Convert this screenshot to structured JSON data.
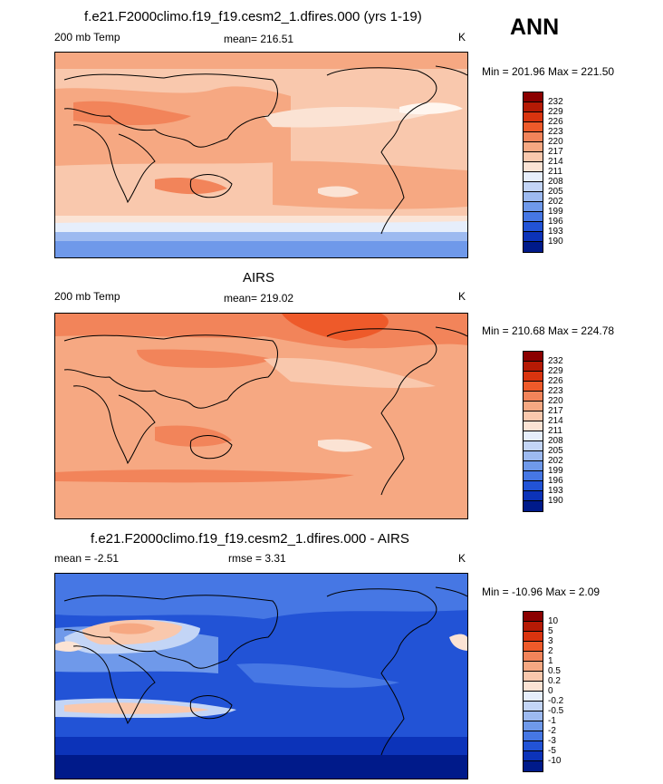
{
  "season": "ANN",
  "panels": [
    {
      "title": "f.e21.F2000climo.f19_f19.cesm2_1.dfires.000 (yrs 1-19)",
      "left_label": "200 mb Temp",
      "stat_label": "mean= 216.51",
      "units": "K",
      "minmax": "Min = 201.96 Max = 221.50"
    },
    {
      "title": "AIRS",
      "left_label": "200 mb Temp",
      "stat_label": "mean= 219.02",
      "units": "K",
      "minmax": "Min = 210.68 Max = 224.78"
    },
    {
      "title": "f.e21.F2000climo.f19_f19.cesm2_1.dfires.000 - AIRS",
      "left_label": "mean =  -2.51",
      "stat_label": "rmse =   3.31",
      "units": "K",
      "minmax": "Min = -10.96 Max =   2.09"
    }
  ],
  "colorbars": {
    "absolute": {
      "labels": [
        "232",
        "229",
        "226",
        "223",
        "220",
        "217",
        "214",
        "211",
        "208",
        "205",
        "202",
        "199",
        "196",
        "193",
        "190"
      ],
      "colors": [
        "#8b0000",
        "#b51a05",
        "#d9340f",
        "#ee5a2a",
        "#f2845a",
        "#f6a882",
        "#f9c8ad",
        "#fbe3d4",
        "#e6eefb",
        "#c3d5f6",
        "#9dbaf0",
        "#6f99ea",
        "#4677e4",
        "#2253d6",
        "#0c33b9",
        "#001a8a"
      ]
    },
    "difference": {
      "labels": [
        "10",
        "5",
        "3",
        "2",
        "1",
        "0.5",
        "0.2",
        "0",
        "-0.2",
        "-0.5",
        "-1",
        "-2",
        "-3",
        "-5",
        "-10"
      ],
      "colors": [
        "#8b0000",
        "#b51a05",
        "#d9340f",
        "#ee5a2a",
        "#f2845a",
        "#f6a882",
        "#f9c8ad",
        "#fbe3d4",
        "#e6eefb",
        "#c3d5f6",
        "#9dbaf0",
        "#6f99ea",
        "#4677e4",
        "#2253d6",
        "#0c33b9",
        "#001a8a"
      ]
    }
  }
}
